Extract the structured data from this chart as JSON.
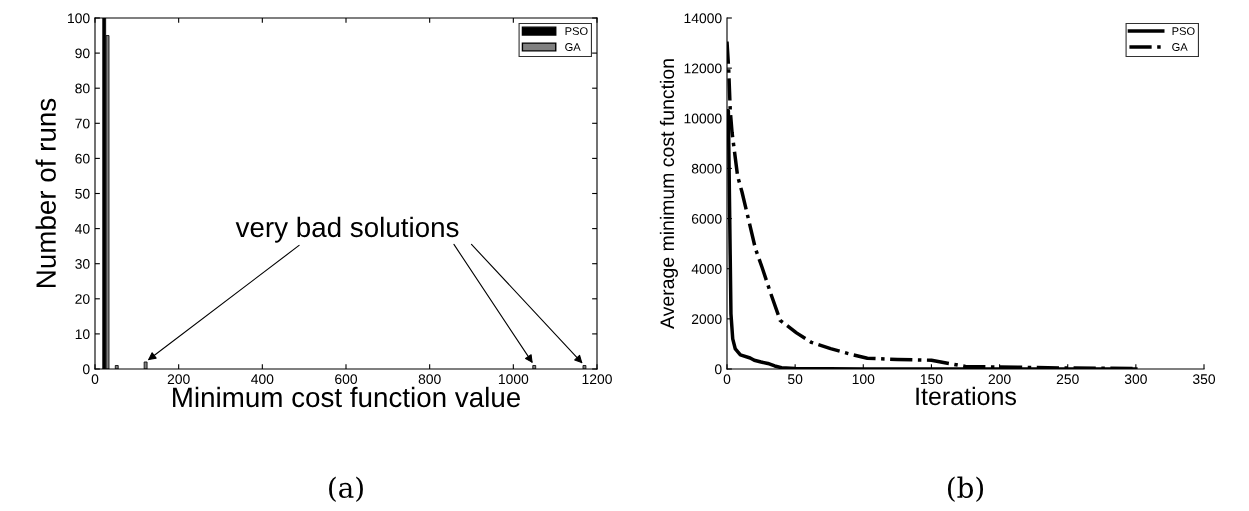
{
  "chart_data": [
    {
      "type": "bar",
      "xlabel": "Minimum cost function value",
      "ylabel": "Number of runs",
      "series": [
        {
          "name": "PSO",
          "color": "#000000",
          "x": [
            22
          ],
          "values": [
            100
          ]
        },
        {
          "name": "GA",
          "color": "#808080",
          "x": [
            30,
            52,
            121,
            1050,
            1170
          ],
          "values": [
            95,
            1,
            2,
            1,
            1
          ]
        }
      ],
      "xlim": [
        0,
        1200
      ],
      "xticks": [
        0,
        200,
        400,
        600,
        800,
        1000,
        1200
      ],
      "ylim": [
        0,
        100
      ],
      "yticks": [
        0,
        10,
        20,
        30,
        40,
        50,
        60,
        70,
        80,
        90,
        100
      ],
      "legend": "top right",
      "grid": false,
      "annotations": [
        {
          "text": "very bad solutions",
          "x": 121,
          "y": 2
        },
        "(a)"
      ]
    },
    {
      "type": "line",
      "xlabel": "Iterations",
      "ylabel": "Average minimum cost function",
      "series": [
        {
          "name": "PSO",
          "color": "#000000",
          "line_style": "solid",
          "x": [
            0,
            1,
            2,
            2.9,
            4.2,
            6.1,
            9.8,
            17,
            20,
            25,
            30,
            35,
            40,
            50,
            100,
            200,
            300
          ],
          "values": [
            10300,
            10300,
            6000,
            2200,
            1200,
            800,
            560,
            440,
            350,
            280,
            220,
            120,
            50,
            20,
            0,
            0,
            0
          ]
        },
        {
          "name": "GA",
          "color": "#000000",
          "line_style": "dashdot",
          "x": [
            0,
            1.2,
            2.4,
            3.7,
            7.8,
            11,
            17,
            20.8,
            25.7,
            31.8,
            39,
            51,
            62,
            76,
            90,
            103,
            125,
            150,
            165,
            175,
            200,
            250,
            300
          ],
          "values": [
            13060,
            12000,
            10300,
            9440,
            7690,
            7060,
            5690,
            4810,
            4060,
            3060,
            1940,
            1440,
            1060,
            810,
            600,
            430,
            380,
            350,
            200,
            100,
            80,
            40,
            20
          ]
        }
      ],
      "xlim": [
        0,
        350
      ],
      "xticks": [
        0,
        50,
        100,
        150,
        200,
        250,
        300,
        350
      ],
      "ylim": [
        0,
        14000
      ],
      "yticks": [
        0,
        2000,
        4000,
        6000,
        8000,
        10000,
        12000,
        14000
      ],
      "legend": "top right",
      "grid": false,
      "annotations": [
        "(b)"
      ]
    }
  ]
}
